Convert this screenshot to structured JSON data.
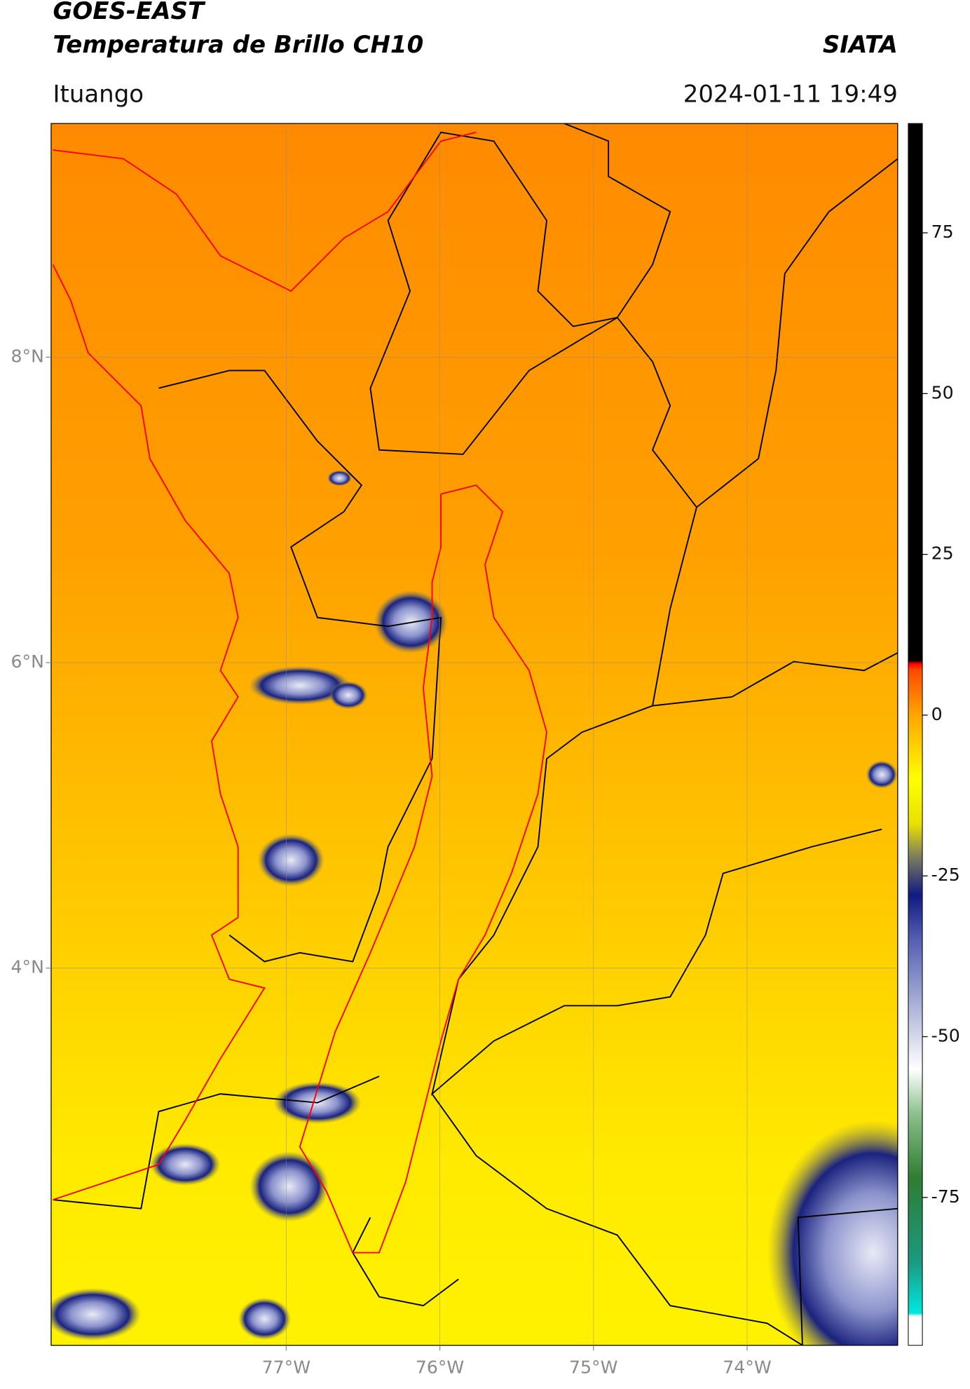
{
  "header": {
    "satellite": "GOES-EAST",
    "product": "Temperatura de Brillo CH10",
    "source": "SIATA",
    "location": "Ituango",
    "datetime": "2024-01-11 19:49"
  },
  "map": {
    "lonlim": [
      -78.53,
      -73.02
    ],
    "latlim": [
      1.53,
      9.53
    ],
    "lonticks": [
      {
        "value": -77,
        "label": "77°W"
      },
      {
        "value": -76,
        "label": "76°W"
      },
      {
        "value": -75,
        "label": "75°W"
      },
      {
        "value": -74,
        "label": "74°W"
      }
    ],
    "latticks": [
      {
        "value": 8,
        "label": "8°N"
      },
      {
        "value": 6,
        "label": "6°N"
      },
      {
        "value": 4,
        "label": "4°N"
      }
    ],
    "grid": true
  },
  "colorbar": {
    "lim": [
      -98,
      92
    ],
    "ticks": [
      75,
      50,
      25,
      0,
      -25,
      -50,
      -75
    ],
    "colormap": [
      {
        "value": -98,
        "color": "#ffffff"
      },
      {
        "value": -93.5,
        "color": "#ffffff"
      },
      {
        "value": -93,
        "color": "#00e8e0"
      },
      {
        "value": -85,
        "color": "#1a9a80"
      },
      {
        "value": -72,
        "color": "#2e7d32"
      },
      {
        "value": -62,
        "color": "#8cc08c"
      },
      {
        "value": -55,
        "color": "#ffffff"
      },
      {
        "value": -45,
        "color": "#aab0d8"
      },
      {
        "value": -35,
        "color": "#5560b0"
      },
      {
        "value": -28,
        "color": "#101a80"
      },
      {
        "value": -22,
        "color": "#7d7d60"
      },
      {
        "value": -17,
        "color": "#e8e000"
      },
      {
        "value": -10,
        "color": "#ffff00"
      },
      {
        "value": 0,
        "color": "#ffa500"
      },
      {
        "value": 7,
        "color": "#ff4a00"
      },
      {
        "value": 8,
        "color": "#ff0000"
      },
      {
        "value": 8.5,
        "color": "#000000"
      },
      {
        "value": 92,
        "color": "#000000"
      }
    ]
  }
}
